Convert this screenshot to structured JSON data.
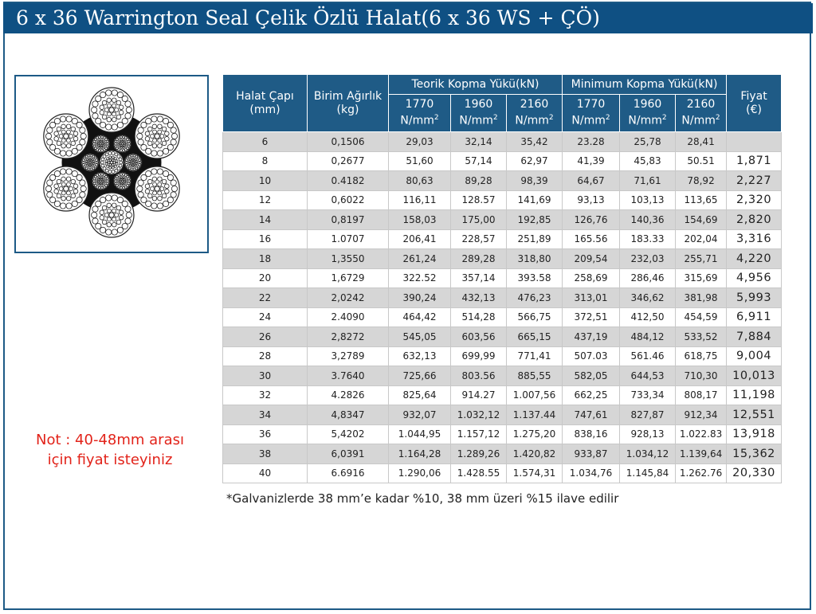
{
  "title": "6 x 36 Warrington Seal Çelik Özlü Halat(6 x 36 WS + ÇÖ)",
  "table": {
    "col_diameter": "Halat Çapı (mm)",
    "col_weight": "Birim Ağırlık (kg)",
    "group_theoretical": "Teorik Kopma Yükü(kN)",
    "group_minimum": "Minimum Kopma Yükü(kN)",
    "col_price": "Fiyat (€)",
    "grade_labels": [
      "1770",
      "1960",
      "2160"
    ],
    "unit": "N/mm",
    "unit_sup": "2",
    "rows": [
      {
        "d": "6",
        "w": "0,1506",
        "t1": "29,03",
        "t2": "32,14",
        "t3": "35,42",
        "m1": "23.28",
        "m2": "25,78",
        "m3": "28,41",
        "p": ""
      },
      {
        "d": "8",
        "w": "0,2677",
        "t1": "51,60",
        "t2": "57,14",
        "t3": "62,97",
        "m1": "41,39",
        "m2": "45,83",
        "m3": "50.51",
        "p": "1,871"
      },
      {
        "d": "10",
        "w": "0.4182",
        "t1": "80,63",
        "t2": "89,28",
        "t3": "98,39",
        "m1": "64,67",
        "m2": "71,61",
        "m3": "78,92",
        "p": "2,227"
      },
      {
        "d": "12",
        "w": "0,6022",
        "t1": "116,11",
        "t2": "128.57",
        "t3": "141,69",
        "m1": "93,13",
        "m2": "103,13",
        "m3": "113,65",
        "p": "2,320"
      },
      {
        "d": "14",
        "w": "0,8197",
        "t1": "158,03",
        "t2": "175,00",
        "t3": "192,85",
        "m1": "126,76",
        "m2": "140,36",
        "m3": "154,69",
        "p": "2,820"
      },
      {
        "d": "16",
        "w": "1.0707",
        "t1": "206,41",
        "t2": "228,57",
        "t3": "251,89",
        "m1": "165.56",
        "m2": "183.33",
        "m3": "202,04",
        "p": "3,316"
      },
      {
        "d": "18",
        "w": "1,3550",
        "t1": "261,24",
        "t2": "289,28",
        "t3": "318,80",
        "m1": "209,54",
        "m2": "232,03",
        "m3": "255,71",
        "p": "4,220"
      },
      {
        "d": "20",
        "w": "1,6729",
        "t1": "322.52",
        "t2": "357,14",
        "t3": "393.58",
        "m1": "258,69",
        "m2": "286,46",
        "m3": "315,69",
        "p": "4,956"
      },
      {
        "d": "22",
        "w": "2,0242",
        "t1": "390,24",
        "t2": "432,13",
        "t3": "476,23",
        "m1": "313,01",
        "m2": "346,62",
        "m3": "381,98",
        "p": "5,993"
      },
      {
        "d": "24",
        "w": "2.4090",
        "t1": "464,42",
        "t2": "514,28",
        "t3": "566,75",
        "m1": "372,51",
        "m2": "412,50",
        "m3": "454,59",
        "p": "6,911"
      },
      {
        "d": "26",
        "w": "2,8272",
        "t1": "545,05",
        "t2": "603,56",
        "t3": "665,15",
        "m1": "437,19",
        "m2": "484,12",
        "m3": "533,52",
        "p": "7,884"
      },
      {
        "d": "28",
        "w": "3,2789",
        "t1": "632,13",
        "t2": "699,99",
        "t3": "771,41",
        "m1": "507.03",
        "m2": "561.46",
        "m3": "618,75",
        "p": "9,004"
      },
      {
        "d": "30",
        "w": "3.7640",
        "t1": "725,66",
        "t2": "803.56",
        "t3": "885,55",
        "m1": "582,05",
        "m2": "644,53",
        "m3": "710,30",
        "p": "10,013"
      },
      {
        "d": "32",
        "w": "4.2826",
        "t1": "825,64",
        "t2": "914.27",
        "t3": "1.007,56",
        "m1": "662,25",
        "m2": "733,34",
        "m3": "808,17",
        "p": "11,198"
      },
      {
        "d": "34",
        "w": "4,8347",
        "t1": "932,07",
        "t2": "1.032,12",
        "t3": "1.137.44",
        "m1": "747,61",
        "m2": "827,87",
        "m3": "912,34",
        "p": "12,551"
      },
      {
        "d": "36",
        "w": "5,4202",
        "t1": "1.044,95",
        "t2": "1.157,12",
        "t3": "1.275,20",
        "m1": "838,16",
        "m2": "928,13",
        "m3": "1.022.83",
        "p": "13,918"
      },
      {
        "d": "38",
        "w": "6,0391",
        "t1": "1.164,28",
        "t2": "1.289,26",
        "t3": "1.420,82",
        "m1": "933,87",
        "m2": "1.034,12",
        "m3": "1.139,64",
        "p": "15,362"
      },
      {
        "d": "40",
        "w": "6.6916",
        "t1": "1.290,06",
        "t2": "1.428.55",
        "t3": "1.574,31",
        "m1": "1.034,76",
        "m2": "1.145,84",
        "m3": "1.262.76",
        "p": "20,330"
      }
    ]
  },
  "note": {
    "line1": "Not : 40-48mm arası",
    "line2": "için fiyat isteyiniz"
  },
  "footnote": "*Galvanizlerde 38 mm’e kadar %10, 38 mm üzeri %15 ilave edilir",
  "colors": {
    "header_blue": "#1f5b86",
    "title_blue": "#0f5083",
    "note_red": "#e2231a",
    "row_alt": "#d6d6d6"
  }
}
